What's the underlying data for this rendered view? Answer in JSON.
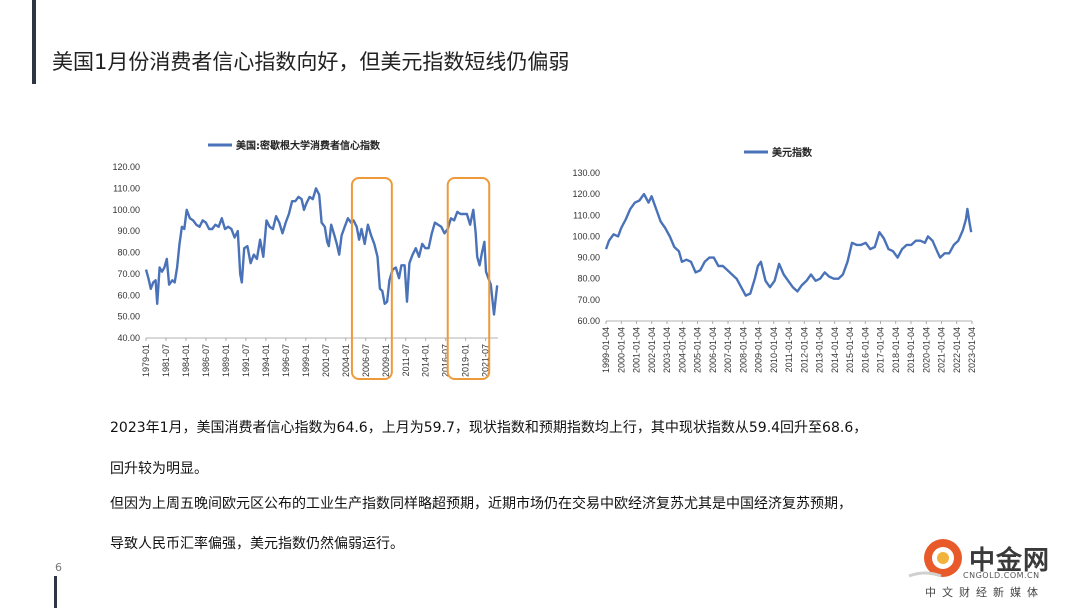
{
  "title": "美国1月份消费者信心指数向好，但美元指数短线仍偏弱",
  "charts": [
    {
      "type": "line",
      "legend": "美国:密歇根大学消费者信心指数",
      "color": "#4a72b8",
      "highlight_color": "#ee9a3a",
      "ylim": [
        40,
        120
      ],
      "yticks": [
        "120.00",
        "110.00",
        "100.00",
        "90.00",
        "80.00",
        "70.00",
        "60.00",
        "50.00",
        "40.00"
      ],
      "xticks": [
        "1979-01",
        "1981-07",
        "1984-01",
        "1986-07",
        "1989-01",
        "1991-07",
        "1994-01",
        "1996-07",
        "1999-01",
        "2001-07",
        "2004-01",
        "2006-07",
        "2009-01",
        "2011-07",
        "2014-01",
        "2016-07",
        "2019-01",
        "2021-07"
      ],
      "xlim": [
        1979.0,
        2023.1
      ],
      "highlight_ranges": [
        [
          2004.8,
          2009.8
        ],
        [
          2016.8,
          2022.0
        ]
      ],
      "series": [
        {
          "x": [
            1979.0,
            1979.3,
            1979.6,
            1979.9,
            1980.2,
            1980.4,
            1980.7,
            1981.0,
            1981.3,
            1981.6,
            1981.9,
            1982.3,
            1982.6,
            1982.9,
            1983.2,
            1983.5,
            1983.8,
            1984.1,
            1984.5,
            1984.9,
            1985.3,
            1985.7,
            1986.1,
            1986.5,
            1986.9,
            1987.3,
            1987.7,
            1988.1,
            1988.5,
            1988.9,
            1989.3,
            1989.7,
            1990.1,
            1990.5,
            1990.8,
            1991.0,
            1991.3,
            1991.7,
            1992.1,
            1992.5,
            1992.9,
            1993.3,
            1993.7,
            1994.1,
            1994.5,
            1994.9,
            1995.3,
            1995.7,
            1996.1,
            1996.5,
            1996.9,
            1997.3,
            1997.7,
            1998.1,
            1998.5,
            1998.8,
            1999.1,
            1999.5,
            1999.9,
            2000.3,
            2000.7,
            2001.0,
            2001.4,
            2001.7,
            2001.9,
            2002.2,
            2002.6,
            2002.9,
            2003.2,
            2003.5,
            2003.9,
            2004.3,
            2004.7,
            2005.0,
            2005.4,
            2005.7,
            2006.0,
            2006.4,
            2006.8,
            2007.2,
            2007.6,
            2008.0,
            2008.3,
            2008.6,
            2008.9,
            2009.2,
            2009.5,
            2009.9,
            2010.3,
            2010.7,
            2011.0,
            2011.4,
            2011.7,
            2012.0,
            2012.4,
            2012.8,
            2013.2,
            2013.6,
            2014.0,
            2014.4,
            2014.8,
            2015.2,
            2015.6,
            2016.0,
            2016.4,
            2016.8,
            2017.2,
            2017.6,
            2018.0,
            2018.4,
            2018.8,
            2019.2,
            2019.6,
            2020.0,
            2020.3,
            2020.5,
            2020.8,
            2021.1,
            2021.4,
            2021.6,
            2021.9,
            2022.2,
            2022.4,
            2022.6,
            2022.8,
            2023.0
          ],
          "y": [
            72.0,
            68.0,
            63.0,
            66.0,
            67.0,
            56.0,
            73.0,
            71.0,
            73.0,
            77.0,
            65.0,
            67.0,
            66.0,
            73.0,
            84.0,
            92.0,
            91.0,
            100.0,
            96.0,
            95.0,
            93.0,
            92.0,
            95.0,
            94.0,
            91.0,
            91.0,
            93.0,
            92.0,
            96.0,
            91.0,
            92.0,
            91.0,
            87.0,
            90.0,
            70.0,
            66.0,
            82.0,
            83.0,
            75.0,
            79.0,
            77.0,
            86.0,
            78.0,
            95.0,
            92.0,
            91.0,
            97.0,
            94.0,
            89.0,
            94.0,
            98.0,
            104.0,
            104.0,
            106.0,
            105.0,
            100.0,
            103.0,
            106.0,
            105.0,
            110.0,
            107.0,
            94.0,
            92.0,
            85.0,
            83.0,
            93.0,
            88.0,
            84.0,
            79.0,
            88.0,
            92.0,
            96.0,
            94.0,
            95.0,
            92.0,
            86.0,
            91.0,
            84.0,
            93.0,
            88.0,
            84.0,
            78.0,
            63.0,
            62.0,
            56.0,
            57.0,
            67.0,
            72.0,
            73.0,
            68.0,
            74.0,
            74.0,
            57.0,
            75.0,
            79.0,
            82.0,
            78.0,
            84.0,
            82.0,
            82.0,
            89.0,
            94.0,
            93.0,
            92.0,
            89.0,
            91.0,
            96.0,
            95.0,
            99.0,
            98.0,
            98.0,
            98.0,
            93.0,
            100.0,
            89.0,
            78.0,
            74.0,
            80.0,
            85.0,
            71.0,
            68.0,
            65.0,
            58.0,
            51.0,
            58.0,
            64.6
          ]
        }
      ]
    },
    {
      "type": "line",
      "legend": "美元指数",
      "color": "#4a72b8",
      "ylim": [
        60,
        130
      ],
      "yticks": [
        "130.00",
        "120.00",
        "110.00",
        "100.00",
        "90.00",
        "80.00",
        "70.00",
        "60.00"
      ],
      "xticks": [
        "1999-01-04",
        "2000-01-04",
        "2001-01-04",
        "2002-01-04",
        "2003-01-04",
        "2004-01-04",
        "2005-01-04",
        "2006-01-04",
        "2007-01-04",
        "2008-01-04",
        "2009-01-04",
        "2010-01-04",
        "2011-01-04",
        "2012-01-04",
        "2013-01-04",
        "2014-01-04",
        "2015-01-04",
        "2016-01-04",
        "2017-01-04",
        "2018-01-04",
        "2019-01-04",
        "2020-01-04",
        "2021-01-04",
        "2022-01-04",
        "2023-01-04"
      ],
      "xlim": [
        1999.0,
        2023.1
      ],
      "series": [
        {
          "x": [
            1999.0,
            1999.2,
            1999.5,
            1999.8,
            2000.0,
            2000.3,
            2000.6,
            2000.9,
            2001.2,
            2001.5,
            2001.8,
            2002.0,
            2002.3,
            2002.6,
            2002.9,
            2003.2,
            2003.5,
            2003.8,
            2004.0,
            2004.3,
            2004.6,
            2004.9,
            2005.2,
            2005.5,
            2005.8,
            2006.1,
            2006.4,
            2006.7,
            2007.0,
            2007.3,
            2007.6,
            2007.9,
            2008.2,
            2008.5,
            2008.8,
            2009.0,
            2009.2,
            2009.5,
            2009.8,
            2010.1,
            2010.4,
            2010.7,
            2011.0,
            2011.3,
            2011.6,
            2011.9,
            2012.2,
            2012.5,
            2012.8,
            2013.1,
            2013.4,
            2013.7,
            2014.0,
            2014.3,
            2014.6,
            2014.9,
            2015.2,
            2015.5,
            2015.8,
            2016.1,
            2016.4,
            2016.7,
            2017.0,
            2017.3,
            2017.6,
            2017.9,
            2018.2,
            2018.5,
            2018.8,
            2019.1,
            2019.4,
            2019.7,
            2020.0,
            2020.2,
            2020.5,
            2020.8,
            2021.0,
            2021.3,
            2021.6,
            2021.9,
            2022.2,
            2022.5,
            2022.7,
            2022.8,
            2022.95,
            2023.05
          ],
          "y": [
            94.0,
            98.0,
            101.0,
            100.0,
            104.0,
            108.0,
            113.0,
            116.0,
            117.0,
            120.0,
            116.0,
            119.0,
            113.0,
            107.0,
            104.0,
            100.0,
            95.0,
            93.0,
            88.0,
            89.0,
            88.0,
            83.0,
            84.0,
            88.0,
            90.0,
            90.0,
            86.0,
            86.0,
            84.0,
            82.0,
            80.0,
            76.0,
            72.0,
            73.0,
            80.0,
            86.0,
            88.0,
            79.0,
            76.0,
            79.0,
            87.0,
            82.0,
            79.0,
            76.0,
            74.0,
            77.0,
            79.0,
            82.0,
            79.0,
            80.0,
            83.0,
            81.0,
            80.0,
            80.0,
            82.0,
            88.0,
            97.0,
            96.0,
            96.0,
            97.0,
            94.0,
            95.0,
            102.0,
            99.0,
            94.0,
            93.0,
            90.0,
            94.0,
            96.0,
            96.0,
            98.0,
            98.0,
            97.0,
            100.0,
            98.0,
            93.0,
            90.0,
            92.0,
            92.0,
            96.0,
            98.0,
            103.0,
            108.0,
            113.0,
            106.0,
            102.0
          ]
        }
      ]
    }
  ],
  "paragraphs": [
    "2023年1月，美国消费者信心指数为64.6，上月为59.7，现状指数和预期指数均上行，其中现状指数从59.4回升至68.6，",
    "回升较为明显。",
    "但因为上周五晚间欧元区公布的工业生产指数同样略超预期，近期市场仍在交易中欧经济复苏尤其是中国经济复苏预期，",
    "导致人民币汇率偏强，美元指数仍然偏弱运行。"
  ],
  "page_number": "6",
  "logo": {
    "name": "中金网",
    "url": "CNGOLD.COM.CN",
    "tagline": "中文财经新媒体",
    "color": "#e85a2a"
  }
}
